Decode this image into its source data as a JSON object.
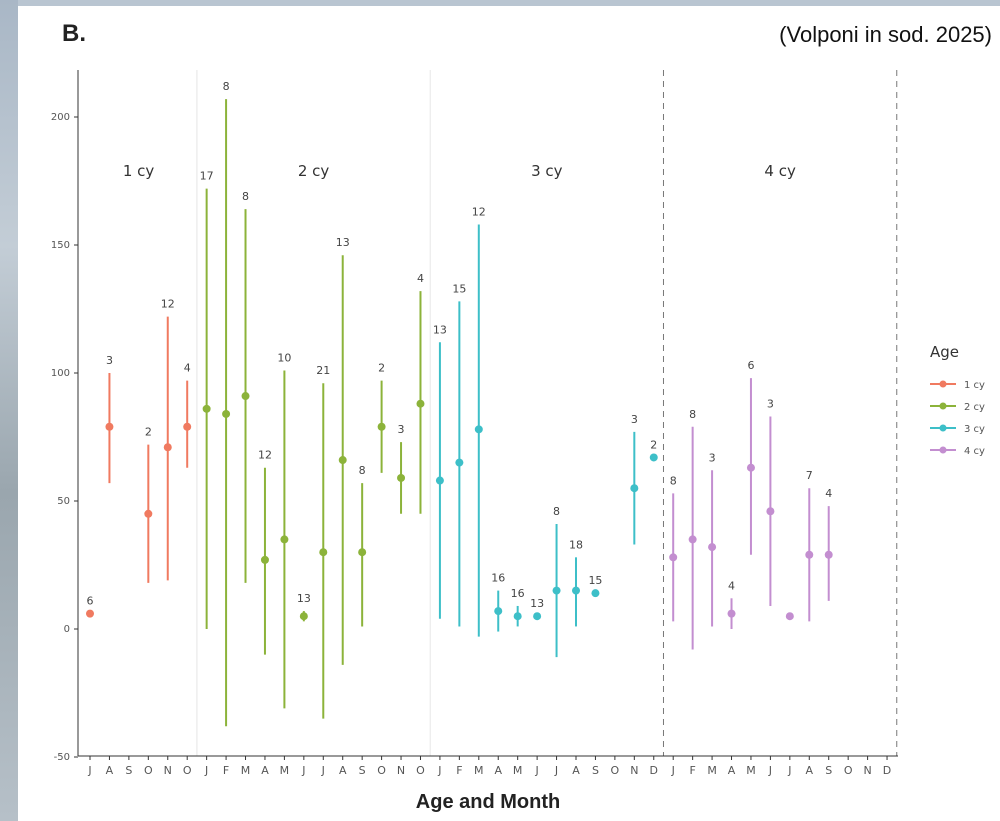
{
  "panel_label": "B.",
  "citation": "(Volponi in sod. 2025)",
  "chart_data": {
    "type": "errorbar",
    "xlabel": "Age and Month",
    "ylabel": "",
    "ylim": [
      -50,
      220
    ],
    "yticks": [
      -50,
      0,
      50,
      100,
      150,
      200
    ],
    "months": [
      "J",
      "A",
      "S",
      "O",
      "N",
      "O",
      "J",
      "F",
      "M",
      "A",
      "M",
      "J",
      "J",
      "A",
      "S",
      "O",
      "N",
      "O",
      "J",
      "F",
      "M",
      "A",
      "M",
      "J",
      "J",
      "A",
      "S",
      "O",
      "N",
      "D",
      "J",
      "F",
      "M",
      "A",
      "M",
      "J",
      "J",
      "A",
      "S",
      "O",
      "N",
      "D"
    ],
    "group_labels": [
      {
        "label": "1 cy",
        "center": 3
      },
      {
        "label": "2 cy",
        "center": 12
      },
      {
        "label": "3 cy",
        "center": 24
      },
      {
        "label": "4 cy",
        "center": 36
      }
    ],
    "dividers": [
      {
        "after": 5,
        "style": "solid"
      },
      {
        "after": 17,
        "style": "solid"
      },
      {
        "after": 29,
        "style": "dashed"
      },
      {
        "after": 41,
        "style": "dashed"
      }
    ],
    "colors": {
      "1 cy": "#f07a60",
      "2 cy": "#8cb33a",
      "3 cy": "#3dbfc8",
      "4 cy": "#c38ed0"
    },
    "legend": {
      "title": "Age",
      "position": "right",
      "entries": [
        "1 cy",
        "2 cy",
        "3 cy",
        "4 cy"
      ]
    },
    "series": [
      {
        "name": "1 cy",
        "points": [
          {
            "x": 0,
            "mean": 6,
            "low": null,
            "high": null,
            "n": "6"
          },
          {
            "x": 1,
            "mean": 79,
            "low": 57,
            "high": 100,
            "n": "3"
          },
          {
            "x": 3,
            "mean": 45,
            "low": 18,
            "high": 72,
            "n": "2"
          },
          {
            "x": 4,
            "mean": 71,
            "low": 19,
            "high": 122,
            "n": "12"
          },
          {
            "x": 5,
            "mean": 79,
            "low": 63,
            "high": 97,
            "n": "4"
          }
        ]
      },
      {
        "name": "2 cy",
        "points": [
          {
            "x": 6,
            "mean": 86,
            "low": 0,
            "high": 172,
            "n": "17"
          },
          {
            "x": 7,
            "mean": 84,
            "low": -38,
            "high": 207,
            "n": "8"
          },
          {
            "x": 8,
            "mean": 91,
            "low": 18,
            "high": 164,
            "n": "8"
          },
          {
            "x": 9,
            "mean": 27,
            "low": -10,
            "high": 63,
            "n": "12"
          },
          {
            "x": 10,
            "mean": 35,
            "low": -31,
            "high": 101,
            "n": "10"
          },
          {
            "x": 11,
            "mean": 5,
            "low": 3,
            "high": 7,
            "n": "13"
          },
          {
            "x": 12,
            "mean": 30,
            "low": -35,
            "high": 96,
            "n": "21"
          },
          {
            "x": 13,
            "mean": 66,
            "low": -14,
            "high": 146,
            "n": "13"
          },
          {
            "x": 14,
            "mean": 30,
            "low": 1,
            "high": 57,
            "n": "8"
          },
          {
            "x": 15,
            "mean": 79,
            "low": 61,
            "high": 97,
            "n": "2"
          },
          {
            "x": 16,
            "mean": 59,
            "low": 45,
            "high": 73,
            "n": "3"
          },
          {
            "x": 17,
            "mean": 88,
            "low": 45,
            "high": 132,
            "n": "4"
          }
        ]
      },
      {
        "name": "3 cy",
        "points": [
          {
            "x": 18,
            "mean": 58,
            "low": 4,
            "high": 112,
            "n": "13"
          },
          {
            "x": 19,
            "mean": 65,
            "low": 1,
            "high": 128,
            "n": "15"
          },
          {
            "x": 20,
            "mean": 78,
            "low": -3,
            "high": 158,
            "n": "12"
          },
          {
            "x": 21,
            "mean": 7,
            "low": -1,
            "high": 15,
            "n": "16"
          },
          {
            "x": 22,
            "mean": 5,
            "low": 1,
            "high": 9,
            "n": "16"
          },
          {
            "x": 23,
            "mean": 5,
            "low": null,
            "high": null,
            "n": "13"
          },
          {
            "x": 24,
            "mean": 15,
            "low": -11,
            "high": 41,
            "n": "8"
          },
          {
            "x": 25,
            "mean": 15,
            "low": 1,
            "high": 28,
            "n": "18"
          },
          {
            "x": 26,
            "mean": 14,
            "low": null,
            "high": null,
            "n": "15"
          },
          {
            "x": 28,
            "mean": 55,
            "low": 33,
            "high": 77,
            "n": "3"
          },
          {
            "x": 29,
            "mean": 67,
            "low": null,
            "high": null,
            "n": "2"
          }
        ]
      },
      {
        "name": "4 cy",
        "points": [
          {
            "x": 30,
            "mean": 28,
            "low": 3,
            "high": 53,
            "n": "8"
          },
          {
            "x": 31,
            "mean": 35,
            "low": -8,
            "high": 79,
            "n": "8"
          },
          {
            "x": 32,
            "mean": 32,
            "low": 1,
            "high": 62,
            "n": "3"
          },
          {
            "x": 33,
            "mean": 6,
            "low": 0,
            "high": 12,
            "n": "4"
          },
          {
            "x": 34,
            "mean": 63,
            "low": 29,
            "high": 98,
            "n": "6"
          },
          {
            "x": 35,
            "mean": 46,
            "low": 9,
            "high": 83,
            "n": "3"
          },
          {
            "x": 36,
            "mean": 5,
            "low": null,
            "high": null,
            "n": ""
          },
          {
            "x": 37,
            "mean": 29,
            "low": 3,
            "high": 55,
            "n": "7"
          },
          {
            "x": 38,
            "mean": 29,
            "low": 11,
            "high": 48,
            "n": "4"
          }
        ]
      }
    ]
  }
}
